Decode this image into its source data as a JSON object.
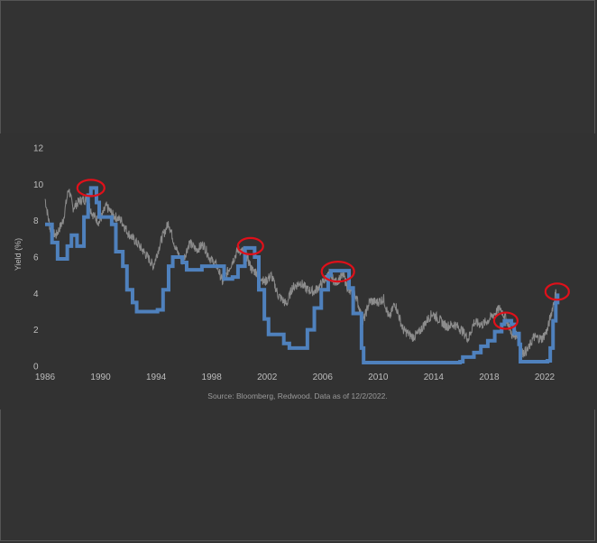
{
  "chart_data": {
    "type": "line",
    "title": "",
    "xlabel": "",
    "ylabel": "Yield (%)",
    "source_note": "Source: Bloomberg, Redwood. Data as of 12/2/2022.",
    "xlim": [
      1986,
      2023.5
    ],
    "ylim": [
      0,
      12
    ],
    "x_ticks": [
      "1986",
      "1990",
      "1994",
      "1998",
      "2002",
      "2006",
      "2010",
      "2014",
      "2018",
      "2022"
    ],
    "y_ticks": [
      "0",
      "2",
      "4",
      "6",
      "8",
      "10",
      "12"
    ],
    "grid": false,
    "legend": "none",
    "colors": {
      "background": "#333333",
      "fed_funds_line": "#4f81bd",
      "treasury_line": "#8c8c8c",
      "highlight_circle": "#e0101a",
      "text": "#bdbdbd"
    },
    "series": [
      {
        "key": "fed_funds",
        "points": [
          [
            1986.0,
            7.8
          ],
          [
            1986.5,
            6.8
          ],
          [
            1986.9,
            5.9
          ],
          [
            1987.6,
            6.6
          ],
          [
            1987.9,
            7.2
          ],
          [
            1988.3,
            6.6
          ],
          [
            1988.8,
            8.2
          ],
          [
            1989.1,
            9.4
          ],
          [
            1989.3,
            9.8
          ],
          [
            1989.7,
            9.0
          ],
          [
            1989.9,
            8.2
          ],
          [
            1990.8,
            7.8
          ],
          [
            1991.1,
            6.3
          ],
          [
            1991.6,
            5.5
          ],
          [
            1991.9,
            4.2
          ],
          [
            1992.3,
            3.5
          ],
          [
            1992.6,
            3.0
          ],
          [
            1994.1,
            3.1
          ],
          [
            1994.5,
            4.2
          ],
          [
            1994.9,
            5.5
          ],
          [
            1995.2,
            6.0
          ],
          [
            1995.9,
            5.7
          ],
          [
            1996.2,
            5.3
          ],
          [
            1997.3,
            5.5
          ],
          [
            1998.6,
            5.5
          ],
          [
            1998.9,
            4.8
          ],
          [
            1999.5,
            4.9
          ],
          [
            1999.9,
            5.5
          ],
          [
            2000.4,
            6.5
          ],
          [
            2000.9,
            6.5
          ],
          [
            2001.1,
            6.0
          ],
          [
            2001.4,
            4.2
          ],
          [
            2001.8,
            2.6
          ],
          [
            2002.1,
            1.75
          ],
          [
            2002.9,
            1.75
          ],
          [
            2003.2,
            1.25
          ],
          [
            2003.6,
            1.0
          ],
          [
            2004.5,
            1.0
          ],
          [
            2004.9,
            2.0
          ],
          [
            2005.4,
            3.2
          ],
          [
            2005.9,
            4.2
          ],
          [
            2006.4,
            5.0
          ],
          [
            2006.6,
            5.25
          ],
          [
            2007.6,
            5.25
          ],
          [
            2007.9,
            4.3
          ],
          [
            2008.2,
            2.9
          ],
          [
            2008.8,
            1.0
          ],
          [
            2008.95,
            0.2
          ],
          [
            2015.9,
            0.25
          ],
          [
            2016.1,
            0.5
          ],
          [
            2016.9,
            0.75
          ],
          [
            2017.4,
            1.1
          ],
          [
            2017.9,
            1.4
          ],
          [
            2018.4,
            1.9
          ],
          [
            2018.9,
            2.3
          ],
          [
            2019.1,
            2.5
          ],
          [
            2019.6,
            2.3
          ],
          [
            2019.8,
            1.8
          ],
          [
            2020.15,
            1.2
          ],
          [
            2020.25,
            0.25
          ],
          [
            2022.2,
            0.3
          ],
          [
            2022.4,
            1.0
          ],
          [
            2022.6,
            2.5
          ],
          [
            2022.8,
            3.5
          ],
          [
            2022.93,
            4.0
          ]
        ]
      },
      {
        "key": "ten_year_treasury",
        "points": [
          [
            1986.0,
            9.2
          ],
          [
            1986.4,
            7.4
          ],
          [
            1986.8,
            7.2
          ],
          [
            1987.3,
            8.0
          ],
          [
            1987.7,
            9.8
          ],
          [
            1988.0,
            8.7
          ],
          [
            1988.5,
            9.1
          ],
          [
            1989.0,
            9.2
          ],
          [
            1989.4,
            8.4
          ],
          [
            1989.9,
            7.9
          ],
          [
            1990.4,
            8.8
          ],
          [
            1990.9,
            8.3
          ],
          [
            1991.5,
            8.0
          ],
          [
            1992.0,
            7.3
          ],
          [
            1992.7,
            6.7
          ],
          [
            1993.4,
            6.0
          ],
          [
            1993.8,
            5.5
          ],
          [
            1994.4,
            7.0
          ],
          [
            1994.9,
            7.9
          ],
          [
            1995.4,
            6.5
          ],
          [
            1995.9,
            5.7
          ],
          [
            1996.4,
            6.8
          ],
          [
            1996.9,
            6.4
          ],
          [
            1997.4,
            6.7
          ],
          [
            1997.9,
            5.9
          ],
          [
            1998.4,
            5.5
          ],
          [
            1998.8,
            4.6
          ],
          [
            1999.4,
            5.6
          ],
          [
            1999.9,
            6.4
          ],
          [
            2000.4,
            6.3
          ],
          [
            2000.9,
            5.3
          ],
          [
            2001.4,
            5.1
          ],
          [
            2001.8,
            4.6
          ],
          [
            2002.3,
            5.0
          ],
          [
            2002.8,
            3.9
          ],
          [
            2003.4,
            3.4
          ],
          [
            2003.8,
            4.3
          ],
          [
            2004.4,
            4.6
          ],
          [
            2004.9,
            4.2
          ],
          [
            2005.4,
            4.1
          ],
          [
            2005.9,
            4.5
          ],
          [
            2006.5,
            5.1
          ],
          [
            2006.9,
            4.6
          ],
          [
            2007.5,
            5.0
          ],
          [
            2007.9,
            4.1
          ],
          [
            2008.4,
            3.9
          ],
          [
            2008.9,
            2.4
          ],
          [
            2009.4,
            3.6
          ],
          [
            2009.9,
            3.5
          ],
          [
            2010.4,
            3.7
          ],
          [
            2010.8,
            2.6
          ],
          [
            2011.2,
            3.5
          ],
          [
            2011.8,
            2.0
          ],
          [
            2012.5,
            1.6
          ],
          [
            2012.9,
            1.8
          ],
          [
            2013.5,
            2.5
          ],
          [
            2013.9,
            2.9
          ],
          [
            2014.5,
            2.5
          ],
          [
            2014.9,
            2.2
          ],
          [
            2015.5,
            2.3
          ],
          [
            2016.0,
            2.0
          ],
          [
            2016.5,
            1.5
          ],
          [
            2016.9,
            2.4
          ],
          [
            2017.5,
            2.3
          ],
          [
            2017.9,
            2.5
          ],
          [
            2018.4,
            2.9
          ],
          [
            2018.8,
            3.2
          ],
          [
            2019.3,
            2.5
          ],
          [
            2019.7,
            1.6
          ],
          [
            2020.0,
            1.8
          ],
          [
            2020.3,
            0.7
          ],
          [
            2020.8,
            0.9
          ],
          [
            2021.2,
            1.6
          ],
          [
            2021.8,
            1.5
          ],
          [
            2022.2,
            2.0
          ],
          [
            2022.5,
            3.0
          ],
          [
            2022.8,
            4.0
          ],
          [
            2022.93,
            3.6
          ]
        ]
      }
    ],
    "annotations": [
      {
        "type": "circle",
        "x": 1989.3,
        "y": 9.8
      },
      {
        "type": "circle",
        "x": 2000.8,
        "y": 6.6
      },
      {
        "type": "circle",
        "x": 2007.1,
        "y": 5.2
      },
      {
        "type": "circle",
        "x": 2019.2,
        "y": 2.5
      },
      {
        "type": "circle",
        "x": 2022.9,
        "y": 4.1
      }
    ]
  }
}
